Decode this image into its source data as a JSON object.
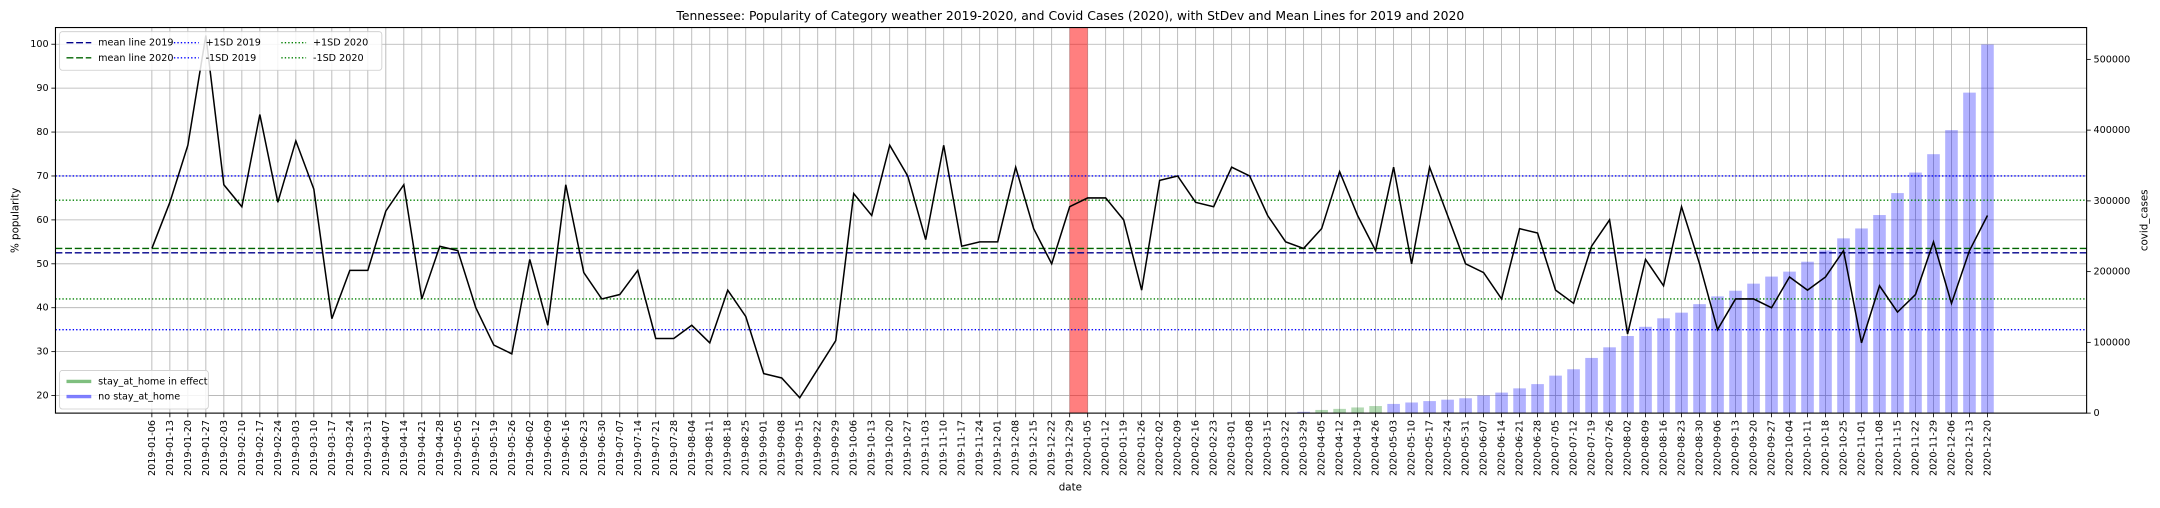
{
  "chart_data": {
    "type": "line",
    "title": "Tennessee: Popularity of Category weather 2019-2020, and Covid Cases (2020), with StDev and Mean Lines for 2019 and 2020",
    "xlabel": "date",
    "ylabel": "% popularity",
    "y2label": "covid_cases",
    "categories": [
      "2019-01-06",
      "2019-01-13",
      "2019-01-20",
      "2019-01-27",
      "2019-02-03",
      "2019-02-10",
      "2019-02-17",
      "2019-02-24",
      "2019-03-03",
      "2019-03-10",
      "2019-03-17",
      "2019-03-24",
      "2019-03-31",
      "2019-04-07",
      "2019-04-14",
      "2019-04-21",
      "2019-04-28",
      "2019-05-05",
      "2019-05-12",
      "2019-05-19",
      "2019-05-26",
      "2019-06-02",
      "2019-06-09",
      "2019-06-16",
      "2019-06-23",
      "2019-06-30",
      "2019-07-07",
      "2019-07-14",
      "2019-07-21",
      "2019-07-28",
      "2019-08-04",
      "2019-08-11",
      "2019-08-18",
      "2019-08-25",
      "2019-09-01",
      "2019-09-08",
      "2019-09-15",
      "2019-09-22",
      "2019-09-29",
      "2019-10-06",
      "2019-10-13",
      "2019-10-20",
      "2019-10-27",
      "2019-11-03",
      "2019-11-10",
      "2019-11-17",
      "2019-11-24",
      "2019-12-01",
      "2019-12-08",
      "2019-12-15",
      "2019-12-22",
      "2019-12-29",
      "2020-01-05",
      "2020-01-12",
      "2020-01-19",
      "2020-01-26",
      "2020-02-02",
      "2020-02-09",
      "2020-02-16",
      "2020-02-23",
      "2020-03-01",
      "2020-03-08",
      "2020-03-15",
      "2020-03-22",
      "2020-03-29",
      "2020-04-05",
      "2020-04-12",
      "2020-04-19",
      "2020-04-26",
      "2020-05-03",
      "2020-05-10",
      "2020-05-17",
      "2020-05-24",
      "2020-05-31",
      "2020-06-07",
      "2020-06-14",
      "2020-06-21",
      "2020-06-28",
      "2020-07-05",
      "2020-07-12",
      "2020-07-19",
      "2020-07-26",
      "2020-08-02",
      "2020-08-09",
      "2020-08-16",
      "2020-08-23",
      "2020-08-30",
      "2020-09-06",
      "2020-09-13",
      "2020-09-20",
      "2020-09-27",
      "2020-10-04",
      "2020-10-11",
      "2020-10-18",
      "2020-10-25",
      "2020-11-01",
      "2020-11-08",
      "2020-11-15",
      "2020-11-22",
      "2020-11-29",
      "2020-12-06",
      "2020-12-13",
      "2020-12-20"
    ],
    "series": [
      {
        "color": "#000000",
        "values": [
          53.5,
          64,
          77,
          102,
          68,
          63,
          84,
          64,
          78,
          67,
          37.5,
          48.5,
          48.5,
          62,
          68,
          42,
          54,
          53,
          40,
          31.5,
          29.5,
          51,
          36,
          68,
          48,
          42,
          43,
          48.5,
          33,
          33,
          36,
          32,
          44,
          38,
          25,
          24,
          19.5,
          26,
          32.5,
          66,
          61,
          77,
          70,
          55.5,
          77,
          54,
          55,
          55,
          72,
          58,
          50,
          63,
          65,
          65,
          60,
          44,
          69,
          70,
          64,
          63,
          72,
          70,
          61,
          55,
          53.5,
          58,
          71,
          61,
          53,
          72,
          50,
          72,
          61,
          50,
          48,
          42,
          58,
          57,
          44,
          41,
          54,
          60,
          34,
          51,
          45,
          63,
          50,
          35,
          42,
          42,
          40,
          47,
          44,
          47,
          53,
          32,
          45,
          39,
          43,
          55,
          41,
          53,
          61
        ]
      },
      {
        "name": "stay_at_home in effect",
        "type": "bar",
        "axis": "y2",
        "color": "#008000",
        "values": [
          null,
          null,
          null,
          null,
          null,
          null,
          null,
          null,
          null,
          null,
          null,
          null,
          null,
          null,
          null,
          null,
          null,
          null,
          null,
          null,
          null,
          null,
          null,
          null,
          null,
          null,
          null,
          null,
          null,
          null,
          null,
          null,
          null,
          null,
          null,
          null,
          null,
          null,
          null,
          null,
          null,
          null,
          null,
          null,
          null,
          null,
          null,
          null,
          null,
          null,
          null,
          null,
          null,
          null,
          null,
          null,
          null,
          null,
          null,
          null,
          null,
          null,
          null,
          null,
          null,
          4500,
          6000,
          8000,
          10000,
          null,
          null,
          null,
          null,
          null,
          null,
          null,
          null,
          null,
          null,
          null,
          null,
          null,
          null,
          null,
          null,
          null,
          null,
          null,
          null,
          null,
          null,
          null,
          null,
          null,
          null,
          null,
          null,
          null,
          null,
          null,
          null,
          null,
          null
        ]
      },
      {
        "name": "no stay_at_home",
        "type": "bar",
        "axis": "y2",
        "color": "#0000ff",
        "values": [
          null,
          null,
          null,
          null,
          null,
          null,
          null,
          null,
          null,
          null,
          null,
          null,
          null,
          null,
          null,
          null,
          null,
          null,
          null,
          null,
          null,
          null,
          null,
          null,
          null,
          null,
          null,
          null,
          null,
          null,
          null,
          null,
          null,
          null,
          null,
          null,
          null,
          null,
          null,
          null,
          null,
          null,
          null,
          null,
          null,
          null,
          null,
          null,
          null,
          null,
          null,
          null,
          null,
          null,
          null,
          null,
          null,
          null,
          null,
          null,
          null,
          null,
          null,
          null,
          1800,
          null,
          null,
          null,
          null,
          13000,
          15000,
          17000,
          19000,
          21000,
          25000,
          29000,
          35000,
          41000,
          53000,
          62000,
          78000,
          93000,
          109000,
          122000,
          134000,
          142000,
          154000,
          165000,
          173000,
          183000,
          193000,
          200000,
          214000,
          230000,
          247000,
          261000,
          280000,
          311000,
          340000,
          366000,
          400000,
          453000,
          521000
        ]
      }
    ],
    "hlines": [
      {
        "name": "mean line 2019",
        "value": 52.5,
        "color": "#00008b",
        "dash": "dashed"
      },
      {
        "name": "mean line 2020",
        "value": 53.5,
        "color": "#006400",
        "dash": "dashed"
      },
      {
        "name": "+1SD 2019",
        "value": 70,
        "color": "#0000ff",
        "dash": "dotted"
      },
      {
        "name": "-1SD 2019",
        "value": 35,
        "color": "#0000ff",
        "dash": "dotted"
      },
      {
        "name": "+1SD 2020",
        "value": 64.5,
        "color": "#008000",
        "dash": "dotted"
      },
      {
        "name": "-1SD 2020",
        "value": 42,
        "color": "#008000",
        "dash": "dotted"
      }
    ],
    "span": {
      "from": "2019-12-29",
      "to": "2020-01-05",
      "color": "#ff0000"
    },
    "ylim": [
      16,
      103.8
    ],
    "yticks": [
      20,
      30,
      40,
      50,
      60,
      70,
      80,
      90,
      100
    ],
    "y2lim": [
      0,
      545000
    ],
    "y2ticks": [
      0,
      100000,
      200000,
      300000,
      400000,
      500000
    ],
    "grid": true,
    "hline_legend": "upper left",
    "bar_legend": "lower left"
  }
}
